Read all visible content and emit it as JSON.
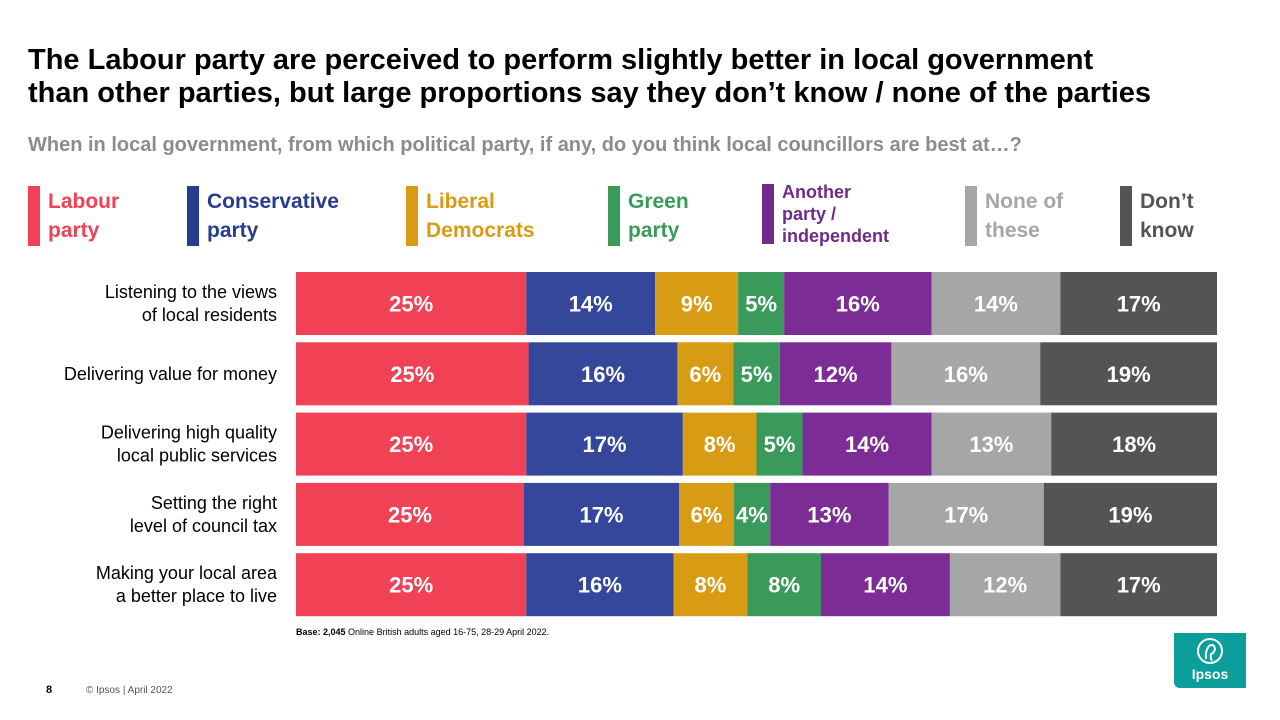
{
  "title_line1": "The Labour party are perceived to perform slightly better in local government",
  "title_line2": "than other parties, but large proportions say they don’t know / none of the parties",
  "subtitle": "When in local government, from which political party, if any, do you think local councillors are best at…?",
  "legend": [
    {
      "label": "Labour\nparty",
      "color": "#f04155",
      "text_color": "#f04155"
    },
    {
      "label": "Conservative\nparty",
      "color": "#283c8c",
      "text_color": "#283c8c"
    },
    {
      "label": "Liberal\nDemocrats",
      "color": "#d89c14",
      "text_color": "#d89c14"
    },
    {
      "label": "Green\nparty",
      "color": "#3a9a5c",
      "text_color": "#3a9a5c"
    },
    {
      "label": "Another\nparty /\nindependent",
      "color": "#6e2a8c",
      "text_color": "#6e2a8c"
    },
    {
      "label": "None of\nthese",
      "color": "#a6a6a6",
      "text_color": "#a6a6a6"
    },
    {
      "label": "Don’t\nknow",
      "color": "#545454",
      "text_color": "#545454"
    }
  ],
  "chart_data": {
    "type": "bar",
    "orientation": "horizontal-stacked-100",
    "categories": [
      "Listening to the views\nof local residents",
      "Delivering value for money",
      "Delivering high quality\nlocal public services",
      "Setting the right\nlevel of council tax",
      "Making your local area\na better place to live"
    ],
    "series": [
      {
        "name": "Labour party",
        "color": "#f04155",
        "values": [
          25,
          25,
          25,
          25,
          25
        ]
      },
      {
        "name": "Conservative party",
        "color": "#34479b",
        "values": [
          14,
          16,
          17,
          17,
          16
        ]
      },
      {
        "name": "Liberal Democrats",
        "color": "#d89c14",
        "values": [
          9,
          6,
          8,
          6,
          8
        ]
      },
      {
        "name": "Green party",
        "color": "#3a9a5c",
        "values": [
          5,
          5,
          5,
          4,
          8
        ]
      },
      {
        "name": "Another party / independent",
        "color": "#7b2d95",
        "values": [
          16,
          12,
          14,
          13,
          14
        ]
      },
      {
        "name": "None of these",
        "color": "#a6a6a6",
        "values": [
          14,
          16,
          13,
          17,
          12
        ]
      },
      {
        "name": "Don’t know",
        "color": "#545454",
        "values": [
          17,
          19,
          18,
          19,
          17
        ]
      }
    ],
    "value_suffix": "%",
    "xlim": [
      0,
      100
    ]
  },
  "base_bold": "Base: 2,045",
  "base_rest": " Online British adults aged 16-75, 28-29 April 2022.",
  "page_number": "8",
  "copyright": "© Ipsos | April 2022",
  "logo_text": "Ipsos"
}
